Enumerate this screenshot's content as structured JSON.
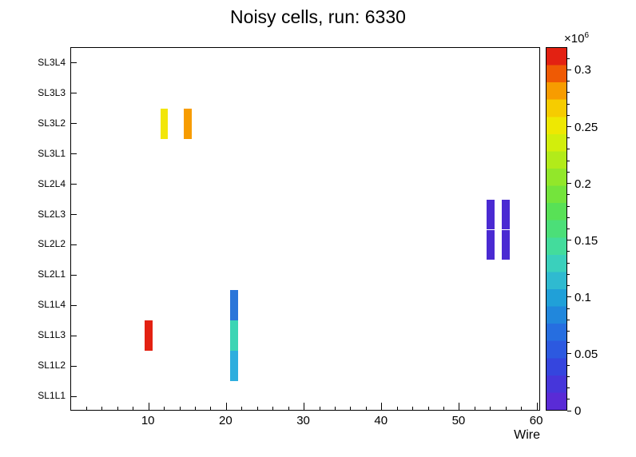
{
  "title": "Noisy cells, run: 6330",
  "x_axis": {
    "label": "Wire",
    "major_ticks": [
      10,
      20,
      30,
      40,
      50,
      60
    ],
    "minor_step": 2,
    "min": 0,
    "max": 60.5
  },
  "y_axis": {
    "rows_bottom_to_top": [
      "SL1L1",
      "SL1L2",
      "SL1L3",
      "SL1L4",
      "SL2L1",
      "SL2L2",
      "SL2L3",
      "SL2L4",
      "SL3L1",
      "SL3L2",
      "SL3L3",
      "SL3L4"
    ]
  },
  "colorbar": {
    "multiplier_base": "×10",
    "multiplier_exp": "6",
    "max": 0.32,
    "minor_step": 0.01,
    "ticks": [
      {
        "v": 0,
        "label": "0"
      },
      {
        "v": 0.05,
        "label": "0.05"
      },
      {
        "v": 0.1,
        "label": "0.1"
      },
      {
        "v": 0.15,
        "label": "0.15"
      },
      {
        "v": 0.2,
        "label": "0.2"
      },
      {
        "v": 0.25,
        "label": "0.25"
      },
      {
        "v": 0.3,
        "label": "0.3"
      }
    ],
    "palette_bottom_to_top": [
      "#5a2bd6",
      "#4636da",
      "#3545de",
      "#2c59e0",
      "#266ee0",
      "#2187dc",
      "#20a0d8",
      "#2fbad0",
      "#3ad0bc",
      "#43dc9c",
      "#4bdf78",
      "#58e156",
      "#74e43c",
      "#92e72a",
      "#b2eb1a",
      "#d2ee0c",
      "#eee802",
      "#f6cc00",
      "#f79c00",
      "#ef5a04",
      "#e32112"
    ]
  },
  "chart_data": {
    "type": "heatmap",
    "title": "Noisy cells, run: 6330",
    "xlabel": "Wire",
    "ylabel": "",
    "x_range": [
      0,
      60.5
    ],
    "rows": [
      "SL1L1",
      "SL1L2",
      "SL1L3",
      "SL1L4",
      "SL2L1",
      "SL2L2",
      "SL2L3",
      "SL2L4",
      "SL3L1",
      "SL3L2",
      "SL3L3",
      "SL3L4"
    ],
    "z_scale": 1000000,
    "zlim": [
      0,
      320000
    ],
    "legend_position": "right-colorbar",
    "grid": false,
    "cells": [
      {
        "wire": 10,
        "layer": "SL1L3",
        "value": 310000,
        "color": "#e32112"
      },
      {
        "wire": 12,
        "layer": "SL3L2",
        "value": 250000,
        "color": "#f2e60a"
      },
      {
        "wire": 15,
        "layer": "SL3L2",
        "value": 280000,
        "color": "#f79c00"
      },
      {
        "wire": 21,
        "layer": "SL1L4",
        "value": 70000,
        "color": "#2b76d9"
      },
      {
        "wire": 21,
        "layer": "SL1L3",
        "value": 130000,
        "color": "#3cd5b4"
      },
      {
        "wire": 21,
        "layer": "SL1L2",
        "value": 100000,
        "color": "#2eaede"
      },
      {
        "wire": 54,
        "layer": "SL2L3",
        "value": 15000,
        "color": "#4a2ad2"
      },
      {
        "wire": 54,
        "layer": "SL2L2",
        "value": 15000,
        "color": "#4a2ad2"
      },
      {
        "wire": 56,
        "layer": "SL2L3",
        "value": 15000,
        "color": "#4a2ad2"
      },
      {
        "wire": 56,
        "layer": "SL2L2",
        "value": 15000,
        "color": "#4a2ad2"
      }
    ]
  }
}
